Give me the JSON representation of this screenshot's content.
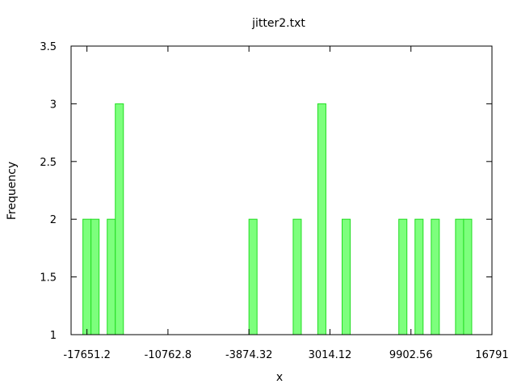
{
  "chart_data": {
    "type": "bar",
    "title": "jitter2.txt",
    "xlabel": "x",
    "ylabel": "Frequency",
    "xlim": [
      -19000,
      16791
    ],
    "ylim": [
      1,
      3.5
    ],
    "x_ticks": [
      {
        "value": -17651.2,
        "label": "-17651.2"
      },
      {
        "value": -10762.8,
        "label": "-10762.8"
      },
      {
        "value": -3874.32,
        "label": "-3874.32"
      },
      {
        "value": 3014.12,
        "label": "3014.12"
      },
      {
        "value": 9902.56,
        "label": "9902.56"
      },
      {
        "value": 16791,
        "label": "16791"
      }
    ],
    "y_ticks": [
      {
        "value": 1,
        "label": "1"
      },
      {
        "value": 1.5,
        "label": "1.5"
      },
      {
        "value": 2,
        "label": "2"
      },
      {
        "value": 2.5,
        "label": "2.5"
      },
      {
        "value": 3,
        "label": "3"
      },
      {
        "value": 3.5,
        "label": "3.5"
      }
    ],
    "bin_width": 689,
    "bars": [
      {
        "x": -17651.2,
        "value": 2
      },
      {
        "x": -16962,
        "value": 2
      },
      {
        "x": -15584,
        "value": 2
      },
      {
        "x": -14895,
        "value": 3
      },
      {
        "x": -3530,
        "value": 2
      },
      {
        "x": 231,
        "value": 2
      },
      {
        "x": 2325,
        "value": 3
      },
      {
        "x": 4392,
        "value": 2
      },
      {
        "x": 9214,
        "value": 2
      },
      {
        "x": 10592,
        "value": 2
      },
      {
        "x": 11970,
        "value": 2
      },
      {
        "x": 14037,
        "value": 2
      },
      {
        "x": 14726,
        "value": 2
      }
    ],
    "grid": false,
    "colors": {
      "bar_fill": "#7dff7d",
      "bar_stroke": "#22dd22"
    }
  }
}
